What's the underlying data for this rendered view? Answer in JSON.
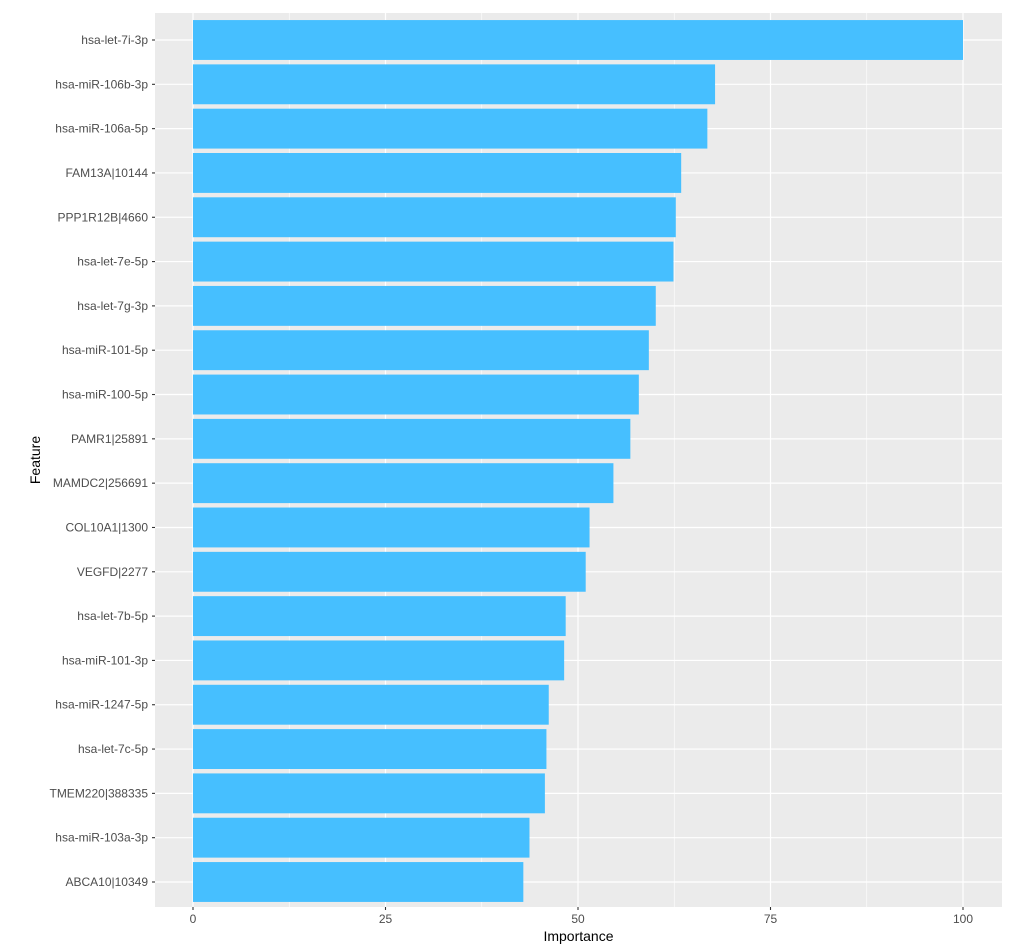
{
  "chart_data": {
    "type": "bar",
    "orientation": "horizontal",
    "xlabel": "Importance",
    "ylabel": "Feature",
    "xlim": [
      0,
      100
    ],
    "x_ticks": [
      0,
      25,
      50,
      75,
      100
    ],
    "grid": true,
    "bar_color": "#46BFFF",
    "panel_color": "#EBEBEB",
    "categories": [
      "hsa-let-7i-3p",
      "hsa-miR-106b-3p",
      "hsa-miR-106a-5p",
      "FAM13A|10144",
      "PPP1R12B|4660",
      "hsa-let-7e-5p",
      "hsa-let-7g-3p",
      "hsa-miR-101-5p",
      "hsa-miR-100-5p",
      "PAMR1|25891",
      "MAMDC2|256691",
      "COL10A1|1300",
      "VEGFD|2277",
      "hsa-let-7b-5p",
      "hsa-miR-101-3p",
      "hsa-miR-1247-5p",
      "hsa-let-7c-5p",
      "TMEM220|388335",
      "hsa-miR-103a-3p",
      "ABCA10|10349"
    ],
    "values": [
      100,
      67.8,
      66.8,
      63.4,
      62.7,
      62.4,
      60.1,
      59.2,
      57.9,
      56.8,
      54.6,
      51.5,
      51.0,
      48.4,
      48.2,
      46.2,
      45.9,
      45.7,
      43.7,
      42.9
    ]
  }
}
